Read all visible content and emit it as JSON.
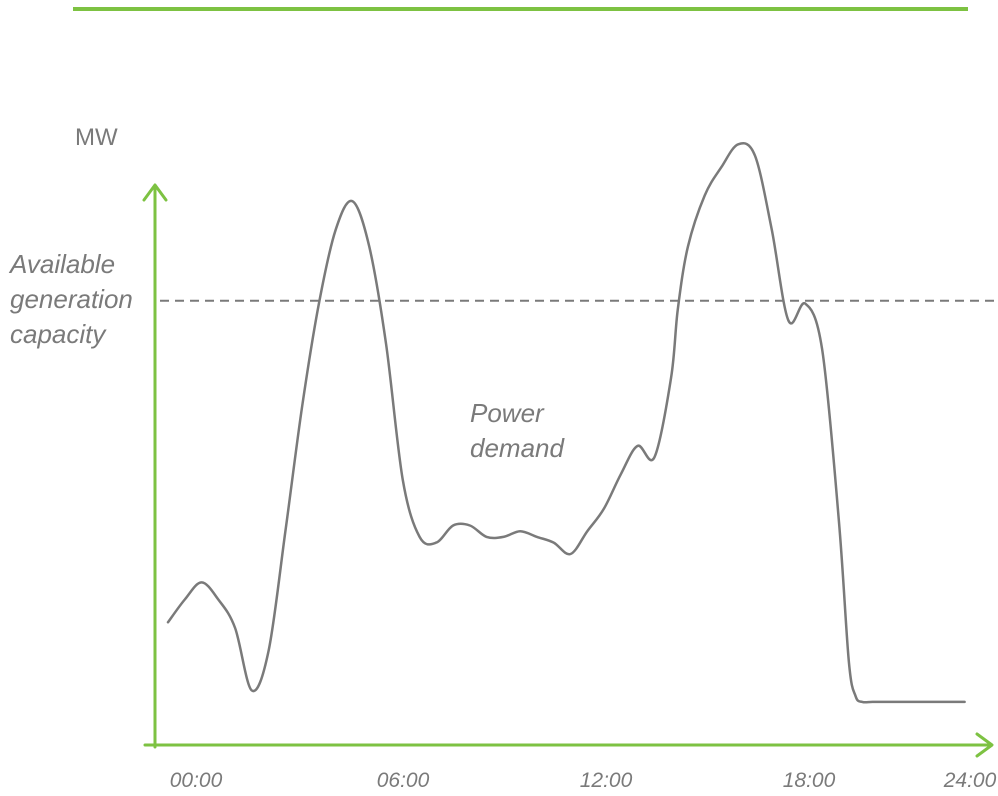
{
  "colors": {
    "accent_green": "#7dc242",
    "demand_line": "#7a7a7a",
    "capacity_line": "#7a7a7a",
    "text": "#7a7a7a"
  },
  "chart_data": {
    "type": "line",
    "title": "",
    "ylabel": "MW",
    "xlabel": "",
    "x_ticks": [
      "00:00",
      "06:00",
      "12:00",
      "18:00",
      "24:00"
    ],
    "xlim": [
      0,
      24
    ],
    "ylim": [
      0,
      100
    ],
    "grid": false,
    "series": [
      {
        "name": "Power demand",
        "style": "solid",
        "x": [
          0,
          0.5,
          1,
          1.5,
          2,
          2.5,
          3,
          3.5,
          4,
          4.5,
          5,
          5.5,
          6,
          6.5,
          7,
          7.5,
          8,
          8.5,
          9,
          9.5,
          10,
          10.5,
          11,
          11.5,
          12,
          12.5,
          13,
          13.5,
          14,
          14.5,
          15,
          15.2,
          15.5,
          16,
          16.5,
          17,
          17.5,
          18,
          18.5,
          19,
          19.5,
          20,
          20.3,
          20.5,
          20.7,
          21,
          21.5,
          22,
          22.5,
          23,
          23.5,
          23.75
        ],
        "y": [
          17,
          21,
          24,
          21,
          16,
          5,
          12,
          33,
          55,
          73,
          86,
          91,
          83,
          66,
          42,
          32,
          31,
          34,
          34,
          32,
          32,
          33,
          32,
          31,
          29,
          33,
          37,
          43,
          48,
          46,
          60,
          72,
          83,
          92,
          97,
          101,
          99,
          86,
          70,
          73,
          65,
          35,
          10,
          4,
          3,
          3,
          3,
          3,
          3,
          3,
          3,
          3
        ]
      }
    ],
    "annotations": [
      {
        "text": "Available generation capacity",
        "target": "capacity_line"
      },
      {
        "text": "Power demand",
        "target": "demand_series"
      }
    ],
    "reference_lines": [
      {
        "label": "Available generation capacity",
        "y": 73.5,
        "style": "dashed"
      }
    ]
  },
  "labels": {
    "ylabel": "MW",
    "capacity": [
      "Available",
      "generation",
      "capacity"
    ],
    "demand": [
      "Power",
      "demand"
    ]
  }
}
